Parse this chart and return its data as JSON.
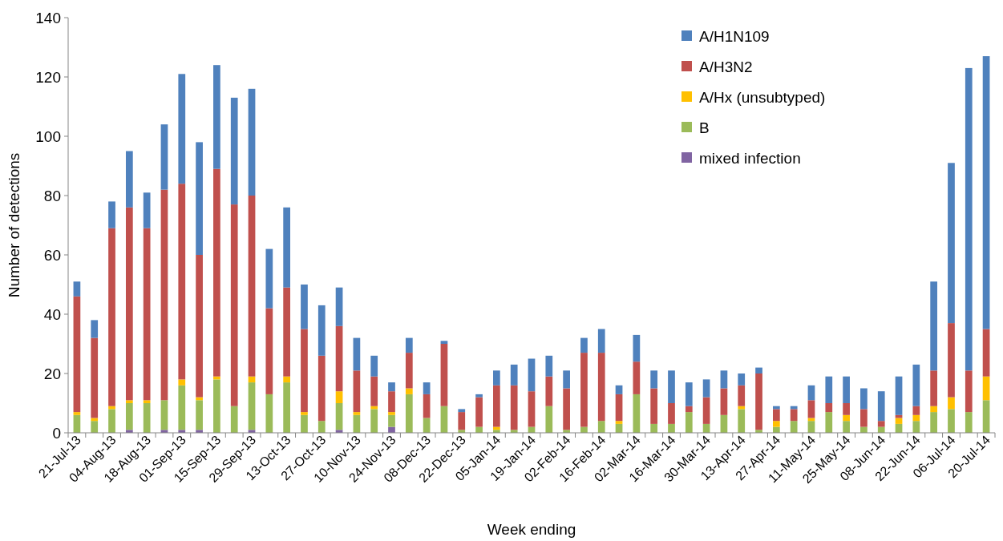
{
  "chart_data": {
    "type": "bar",
    "stacked": true,
    "xlabel": "Week ending",
    "ylabel": "Number of detections",
    "ylim": [
      0,
      140
    ],
    "yticks": [
      0,
      20,
      40,
      60,
      80,
      100,
      120,
      140
    ],
    "grid": false,
    "legend": "top right",
    "categories": [
      "21-Jul-13",
      null,
      "04-Aug-13",
      null,
      "18-Aug-13",
      null,
      "01-Sep-13",
      null,
      "15-Sep-13",
      null,
      "29-Sep-13",
      null,
      "13-Oct-13",
      null,
      "27-Oct-13",
      null,
      "10-Nov-13",
      null,
      "24-Nov-13",
      null,
      "08-Dec-13",
      null,
      "22-Dec-13",
      null,
      "05-Jan-14",
      null,
      "19-Jan-14",
      null,
      "02-Feb-14",
      null,
      "16-Feb-14",
      null,
      "02-Mar-14",
      null,
      "16-Mar-14",
      null,
      "30-Mar-14",
      null,
      "13-Apr-14",
      null,
      "27-Apr-14",
      null,
      "11-May-14",
      null,
      "25-May-14",
      null,
      "08-Jun-14",
      null,
      "22-Jun-14",
      null,
      "06-Jul-14",
      null,
      "20-Jul-14"
    ],
    "series": [
      {
        "name": "mixed infection",
        "color": "#8064a2",
        "values": [
          0,
          0,
          0,
          1,
          0,
          1,
          1,
          1,
          0,
          0,
          1,
          0,
          0,
          0,
          0,
          1,
          0,
          0,
          2,
          0,
          0,
          0,
          0,
          0,
          0,
          0,
          0,
          0,
          0,
          0,
          0,
          0,
          0,
          0,
          0,
          0,
          0,
          0,
          0,
          0,
          0,
          0,
          0,
          0,
          0,
          0,
          0,
          0,
          0,
          0,
          0,
          0,
          0
        ]
      },
      {
        "name": "B",
        "color": "#9bbb59",
        "values": [
          6,
          4,
          8,
          9,
          10,
          10,
          15,
          10,
          18,
          9,
          16,
          13,
          17,
          6,
          4,
          9,
          6,
          8,
          4,
          13,
          5,
          9,
          1,
          2,
          1,
          1,
          2,
          9,
          1,
          2,
          4,
          3,
          13,
          3,
          3,
          7,
          3,
          6,
          8,
          1,
          2,
          4,
          4,
          7,
          4,
          2,
          2,
          3,
          4,
          7,
          8,
          7,
          11
        ]
      },
      {
        "name": "A/Hx (unsubtyped)",
        "color": "#ffc000",
        "values": [
          1,
          1,
          1,
          1,
          1,
          0,
          2,
          1,
          1,
          0,
          2,
          0,
          2,
          1,
          0,
          4,
          1,
          1,
          1,
          2,
          0,
          0,
          0,
          0,
          1,
          0,
          0,
          0,
          0,
          0,
          0,
          1,
          0,
          0,
          0,
          0,
          0,
          0,
          1,
          0,
          2,
          0,
          1,
          0,
          2,
          0,
          0,
          2,
          2,
          2,
          4,
          0,
          8
        ]
      },
      {
        "name": "A/H3N2",
        "color": "#c0504d",
        "values": [
          39,
          27,
          60,
          65,
          58,
          71,
          66,
          48,
          70,
          68,
          61,
          29,
          30,
          28,
          22,
          22,
          14,
          10,
          7,
          12,
          8,
          21,
          6,
          10,
          14,
          15,
          12,
          10,
          14,
          25,
          23,
          9,
          11,
          12,
          7,
          2,
          9,
          9,
          7,
          19,
          4,
          4,
          6,
          3,
          4,
          6,
          2,
          1,
          3,
          12,
          25,
          14,
          16
        ]
      },
      {
        "name": "A/H1N109",
        "color": "#4f81bd",
        "values": [
          5,
          6,
          9,
          19,
          12,
          22,
          37,
          38,
          35,
          36,
          36,
          20,
          27,
          15,
          17,
          13,
          11,
          7,
          3,
          5,
          4,
          1,
          1,
          1,
          5,
          7,
          11,
          7,
          6,
          5,
          8,
          3,
          9,
          6,
          11,
          8,
          6,
          6,
          4,
          2,
          1,
          1,
          5,
          9,
          9,
          7,
          10,
          13,
          14,
          30,
          54,
          102,
          92
        ]
      }
    ]
  }
}
